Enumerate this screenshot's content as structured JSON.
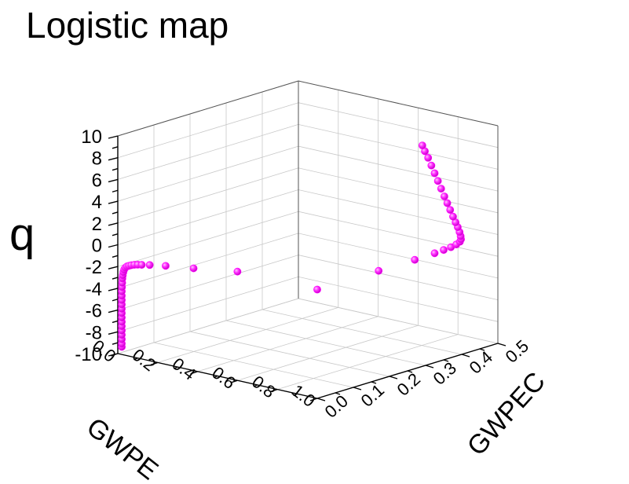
{
  "chart_data": {
    "type": "scatter",
    "title": "Logistic map",
    "xlabel": "GWPE",
    "ylabel": "GWPEC",
    "zlabel": "q",
    "xlim": [
      0.0,
      1.0
    ],
    "ylim": [
      0.0,
      0.5
    ],
    "zlim": [
      -10,
      10
    ],
    "x_ticks": [
      "0.0",
      "0.2",
      "0.4",
      "0.6",
      "0.8",
      "1.0"
    ],
    "y_ticks": [
      "0.0",
      "0.1",
      "0.2",
      "0.3",
      "0.4",
      "0.5"
    ],
    "z_ticks": [
      "10",
      "8",
      "6",
      "4",
      "2",
      "0",
      "-2",
      "-4",
      "-6",
      "-8",
      "-10"
    ],
    "grid": true,
    "marker_color": "#ff00ff",
    "series": [
      {
        "points": [
          {
            "x": 0.02,
            "y": 0.0,
            "z": -9.3
          },
          {
            "x": 0.02,
            "y": 0.0,
            "z": -9.0
          },
          {
            "x": 0.02,
            "y": 0.0,
            "z": -8.6
          },
          {
            "x": 0.02,
            "y": 0.0,
            "z": -8.2
          },
          {
            "x": 0.02,
            "y": 0.0,
            "z": -7.8
          },
          {
            "x": 0.02,
            "y": 0.0,
            "z": -7.4
          },
          {
            "x": 0.02,
            "y": 0.0,
            "z": -7.0
          },
          {
            "x": 0.02,
            "y": 0.0,
            "z": -6.6
          },
          {
            "x": 0.02,
            "y": 0.0,
            "z": -6.2
          },
          {
            "x": 0.02,
            "y": 0.0,
            "z": -5.8
          },
          {
            "x": 0.02,
            "y": 0.0,
            "z": -5.4
          },
          {
            "x": 0.02,
            "y": 0.0,
            "z": -5.0
          },
          {
            "x": 0.02,
            "y": 0.0,
            "z": -4.6
          },
          {
            "x": 0.02,
            "y": 0.0,
            "z": -4.2
          },
          {
            "x": 0.021,
            "y": 0.0,
            "z": -3.8
          },
          {
            "x": 0.022,
            "y": 0.0,
            "z": -3.4
          },
          {
            "x": 0.023,
            "y": 0.0,
            "z": -3.0
          },
          {
            "x": 0.025,
            "y": 0.0,
            "z": -2.7
          },
          {
            "x": 0.028,
            "y": 0.0,
            "z": -2.4
          },
          {
            "x": 0.032,
            "y": 0.0,
            "z": -2.15
          },
          {
            "x": 0.038,
            "y": 0.0,
            "z": -1.95
          },
          {
            "x": 0.046,
            "y": 0.0,
            "z": -1.8
          },
          {
            "x": 0.056,
            "y": 0.0,
            "z": -1.7
          },
          {
            "x": 0.068,
            "y": 0.0,
            "z": -1.6
          },
          {
            "x": 0.083,
            "y": 0.0,
            "z": -1.5
          },
          {
            "x": 0.1,
            "y": 0.0,
            "z": -1.42
          },
          {
            "x": 0.12,
            "y": 0.0,
            "z": -1.35
          },
          {
            "x": 0.16,
            "y": 0.0,
            "z": -1.2
          },
          {
            "x": 0.24,
            "y": 0.0,
            "z": -0.95
          },
          {
            "x": 0.38,
            "y": 0.0,
            "z": -0.6
          },
          {
            "x": 0.6,
            "y": 0.0,
            "z": 0.0
          },
          {
            "x": 1.0,
            "y": 0.0,
            "z": 0.0
          },
          {
            "x": 1.0,
            "y": 0.17,
            "z": 0.0
          },
          {
            "x": 1.0,
            "y": 0.27,
            "z": 0.0
          },
          {
            "x": 1.0,
            "y": 0.325,
            "z": 0.05
          },
          {
            "x": 1.0,
            "y": 0.35,
            "z": 0.1
          },
          {
            "x": 1.0,
            "y": 0.37,
            "z": 0.15
          },
          {
            "x": 1.0,
            "y": 0.385,
            "z": 0.25
          },
          {
            "x": 1.0,
            "y": 0.395,
            "z": 0.4
          },
          {
            "x": 1.0,
            "y": 0.398,
            "z": 0.6
          },
          {
            "x": 1.0,
            "y": 0.397,
            "z": 0.9
          },
          {
            "x": 1.0,
            "y": 0.394,
            "z": 1.3
          },
          {
            "x": 1.0,
            "y": 0.389,
            "z": 1.8
          },
          {
            "x": 1.0,
            "y": 0.383,
            "z": 2.3
          },
          {
            "x": 1.0,
            "y": 0.376,
            "z": 2.9
          },
          {
            "x": 1.0,
            "y": 0.368,
            "z": 3.6
          },
          {
            "x": 1.0,
            "y": 0.36,
            "z": 4.3
          },
          {
            "x": 1.0,
            "y": 0.352,
            "z": 5.0
          },
          {
            "x": 1.0,
            "y": 0.343,
            "z": 5.8
          },
          {
            "x": 1.0,
            "y": 0.334,
            "z": 6.6
          },
          {
            "x": 1.0,
            "y": 0.325,
            "z": 7.4
          },
          {
            "x": 1.0,
            "y": 0.316,
            "z": 8.2
          },
          {
            "x": 1.0,
            "y": 0.307,
            "z": 9.0
          },
          {
            "x": 1.0,
            "y": 0.298,
            "z": 9.7
          },
          {
            "x": 1.0,
            "y": 0.291,
            "z": 10.3
          }
        ]
      }
    ]
  }
}
